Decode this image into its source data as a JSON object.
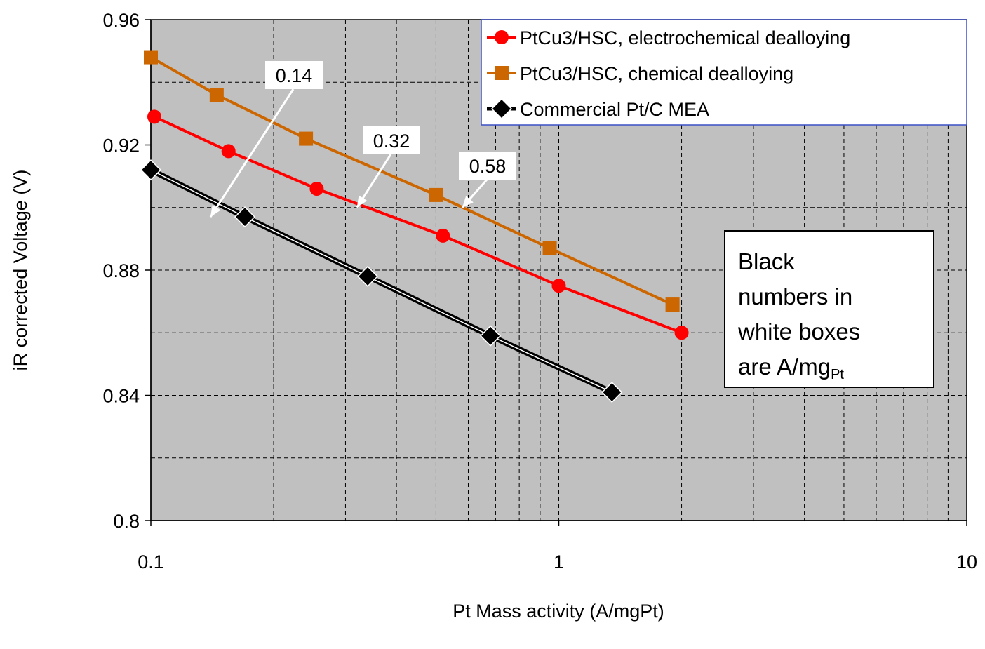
{
  "chart_data": {
    "type": "line",
    "title": "",
    "xlabel": "Pt Mass activity (A/mgPt)",
    "ylabel": "iR corrected Voltage (V)",
    "xscale": "log",
    "xlim": [
      0.1,
      10
    ],
    "ylim": [
      0.8,
      0.96
    ],
    "x_ticks": [
      "0.1",
      "1",
      "10"
    ],
    "y_ticks": [
      "0.8",
      "0.84",
      "0.88",
      "0.92",
      "0.96"
    ],
    "grid": true,
    "plot_background": "#c0c0c0",
    "legend_position": "top-right",
    "series": [
      {
        "name": "PtCu3/HSC, electrochemical dealloying",
        "color": "#ff0000",
        "marker": "circle",
        "x": [
          0.102,
          0.155,
          0.255,
          0.52,
          1.0,
          2.0
        ],
        "y": [
          0.929,
          0.918,
          0.906,
          0.891,
          0.875,
          0.86
        ]
      },
      {
        "name": "PtCu3/HSC, chemical dealloying",
        "color": "#cc6600",
        "marker": "square",
        "x": [
          0.1,
          0.145,
          0.24,
          0.5,
          0.95,
          1.9
        ],
        "y": [
          0.948,
          0.936,
          0.922,
          0.904,
          0.887,
          0.869
        ]
      },
      {
        "name": "Commercial Pt/C MEA",
        "color": "#000000",
        "marker": "diamond",
        "x": [
          0.1,
          0.17,
          0.34,
          0.68,
          1.35
        ],
        "y": [
          0.912,
          0.897,
          0.878,
          0.859,
          0.841
        ]
      }
    ],
    "annotations": [
      {
        "text": "0.14",
        "x": 0.14,
        "y": 0.897
      },
      {
        "text": "0.32",
        "x": 0.32,
        "y": 0.9
      },
      {
        "text": "0.58",
        "x": 0.58,
        "y": 0.9
      }
    ],
    "note": {
      "line1": "Black",
      "line2": "numbers in",
      "line3": "white boxes",
      "line4_prefix": "are A/mg",
      "line4_sub": "Pt"
    }
  }
}
